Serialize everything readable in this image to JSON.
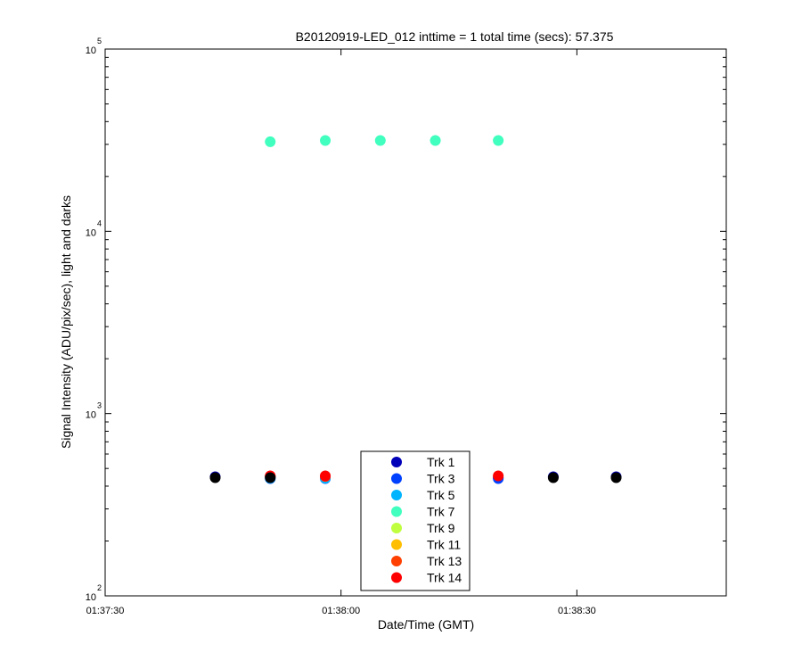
{
  "chart_data": {
    "type": "scatter",
    "title": "B20120919-LED_012 inttime = 1 total time (secs): 57.375",
    "xlabel": "Date/Time (GMT)",
    "ylabel": "Signal Intensity (ADU/pix/sec), light and darks",
    "xlim": [
      "01:37:30",
      "01:38:49"
    ],
    "x_ticks": [
      "01:37:30",
      "01:38:00",
      "01:38:30"
    ],
    "y_scale": "log",
    "ylim": [
      100,
      100000
    ],
    "y_ticks": [
      {
        "base": "10",
        "exp": "2",
        "value": 100
      },
      {
        "base": "10",
        "exp": "3",
        "value": 1000
      },
      {
        "base": "10",
        "exp": "4",
        "value": 10000
      },
      {
        "base": "10",
        "exp": "5",
        "value": 100000
      }
    ],
    "grid": false,
    "legend_position": "bottom-center",
    "series": [
      {
        "name": "Trk 1",
        "color": "#0000b8",
        "points": [
          {
            "x": "01:37:44",
            "y": 450
          },
          {
            "x": "01:37:51",
            "y": 450
          },
          {
            "x": "01:37:58",
            "y": 446
          },
          {
            "x": "01:38:05",
            "y": 446
          },
          {
            "x": "01:38:12",
            "y": 446
          },
          {
            "x": "01:38:20",
            "y": 446
          },
          {
            "x": "01:38:27",
            "y": 450
          },
          {
            "x": "01:38:35",
            "y": 450
          }
        ]
      },
      {
        "name": "Trk 3",
        "color": "#0040ff",
        "points": [
          {
            "x": "01:37:51",
            "y": 440
          },
          {
            "x": "01:37:58",
            "y": 440
          },
          {
            "x": "01:38:20",
            "y": 440
          }
        ]
      },
      {
        "name": "Trk 5",
        "color": "#00b4ff",
        "points": [
          {
            "x": "01:37:51",
            "y": 442
          },
          {
            "x": "01:37:58",
            "y": 442
          }
        ]
      },
      {
        "name": "Trk 7",
        "color": "#40ffbf",
        "points": [
          {
            "x": "01:37:51",
            "y": 31000
          },
          {
            "x": "01:37:58",
            "y": 31500
          },
          {
            "x": "01:38:05",
            "y": 31500
          },
          {
            "x": "01:38:12",
            "y": 31500
          },
          {
            "x": "01:38:20",
            "y": 31500
          }
        ]
      },
      {
        "name": "Trk 9",
        "color": "#bfff40",
        "points": []
      },
      {
        "name": "Trk 11",
        "color": "#ffbf00",
        "points": []
      },
      {
        "name": "Trk 13",
        "color": "#ff4000",
        "points": [
          {
            "x": "01:37:51",
            "y": 452
          },
          {
            "x": "01:37:58",
            "y": 452
          }
        ]
      },
      {
        "name": "Trk 14",
        "color": "#ff0000",
        "points": [
          {
            "x": "01:37:51",
            "y": 455
          },
          {
            "x": "01:37:58",
            "y": 455
          },
          {
            "x": "01:38:20",
            "y": 455
          }
        ]
      },
      {
        "name": "",
        "color": "#000000",
        "points": [
          {
            "x": "01:37:44",
            "y": 445
          },
          {
            "x": "01:37:51",
            "y": 445
          },
          {
            "x": "01:38:27",
            "y": 445
          },
          {
            "x": "01:38:35",
            "y": 445
          }
        ]
      }
    ]
  }
}
